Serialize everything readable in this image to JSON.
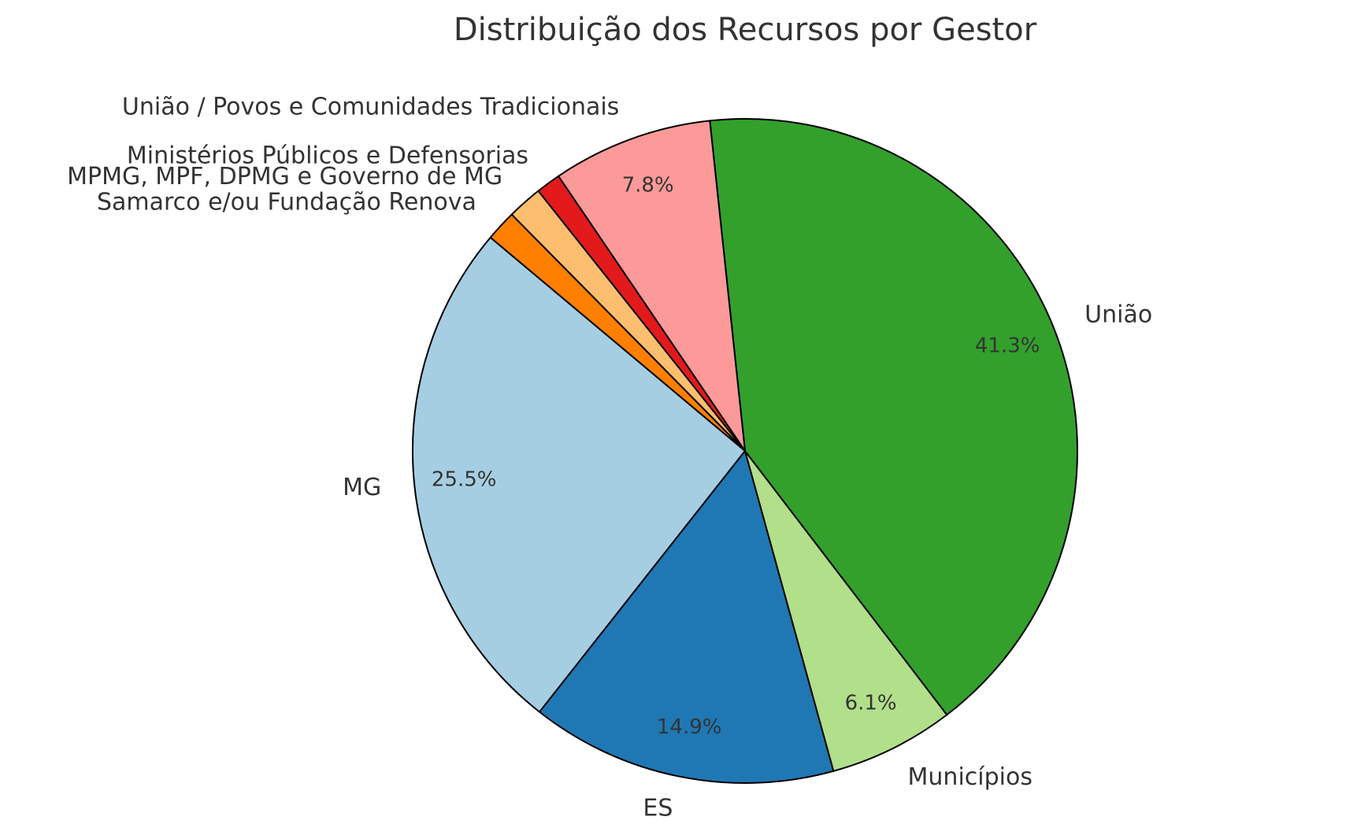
{
  "chart_data": {
    "type": "pie",
    "title": "Distribuição dos Recursos por Gestor",
    "categories": [
      "MG",
      "ES",
      "Municípios",
      "União",
      "União / Povos e Comunidades Tradicionais",
      "Ministérios Públicos e Defensorias",
      "MPMG, MPF, DPMG e Governo de MG",
      "Samarco e/ou Fundação Renova"
    ],
    "values": [
      25.5,
      14.9,
      6.1,
      41.3,
      7.8,
      1.2,
      1.7,
      1.5
    ],
    "value_labels": [
      "25.5%",
      "14.9%",
      "6.1%",
      "41.3%",
      "7.8%",
      null,
      null,
      null
    ],
    "colors": [
      "#a6cee3",
      "#1f78b4",
      "#b2df8a",
      "#33a02c",
      "#fb9a99",
      "#e31a1c",
      "#fdbf6f",
      "#ff7f00"
    ]
  }
}
